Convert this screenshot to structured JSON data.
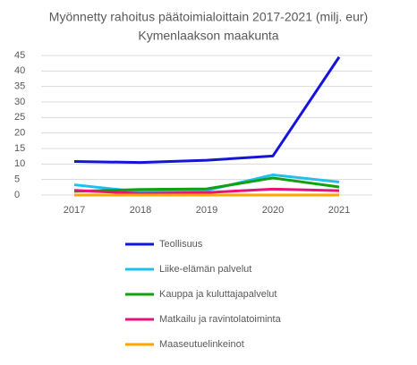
{
  "chart_data": {
    "type": "line",
    "title": "Myönnetty rahoitus päätoimialoittain 2017-2021 (milj. eur)",
    "subtitle": "Kymenlaakson maakunta",
    "categories": [
      "2017",
      "2018",
      "2019",
      "2020",
      "2021"
    ],
    "series": [
      {
        "name": "Teollisuus",
        "color": "#1515d8",
        "values": [
          10.8,
          10.5,
          11.2,
          12.6,
          44.5
        ]
      },
      {
        "name": "Liike-elämän palvelut",
        "color": "#1ec0f0",
        "values": [
          3.3,
          1.0,
          1.5,
          6.5,
          4.2
        ]
      },
      {
        "name": "Kauppa ja kuluttajapalvelut",
        "color": "#10a010",
        "values": [
          1.2,
          1.8,
          2.0,
          5.5,
          2.6
        ]
      },
      {
        "name": "Matkailu ja ravintolatoiminta",
        "color": "#e8127e",
        "values": [
          1.5,
          0.5,
          0.8,
          1.9,
          1.4
        ]
      },
      {
        "name": "Maaseutuelinkeinot",
        "color": "#ffa500",
        "values": [
          0,
          0,
          0,
          0,
          0
        ]
      }
    ],
    "ylim": [
      0,
      45
    ],
    "yticks": [
      0,
      5,
      10,
      15,
      20,
      25,
      30,
      35,
      40,
      45
    ],
    "grid": true,
    "legend": "bottom"
  }
}
